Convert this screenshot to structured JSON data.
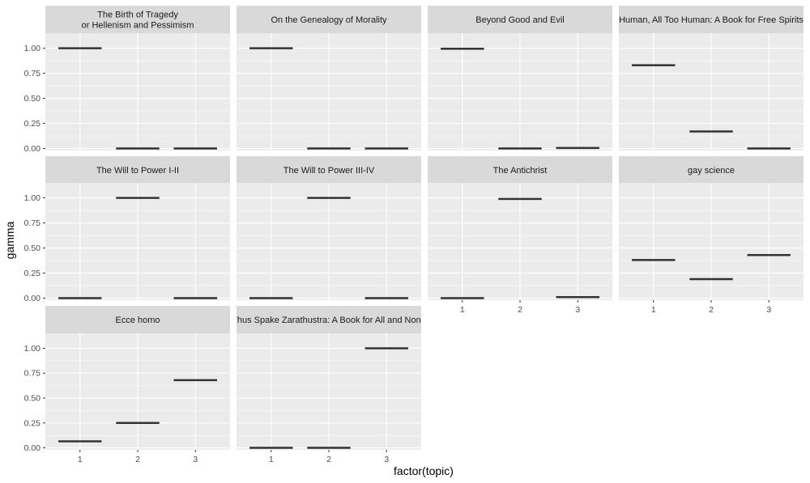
{
  "chart_data": {
    "type": "boxplot",
    "xlabel": "factor(topic)",
    "ylabel": "gamma",
    "x_categories": [
      "1",
      "2",
      "3"
    ],
    "y_ticks": [
      "0.00",
      "0.25",
      "0.50",
      "0.75",
      "1.00"
    ],
    "ylim": [
      -0.02,
      1.15
    ],
    "grid": true,
    "panel_background": "#ebebeb",
    "strip_background": "#d9d9d9",
    "line_color": "#333333",
    "facets": [
      {
        "title": [
          "The Birth of Tragedy",
          "or Hellenism and Pessimism"
        ],
        "values": [
          1.0,
          0.0,
          0.0
        ]
      },
      {
        "title": [
          "On the Genealogy of Morality"
        ],
        "values": [
          1.0,
          0.0,
          0.0
        ]
      },
      {
        "title": [
          "Beyond Good and Evil"
        ],
        "values": [
          0.995,
          0.0,
          0.005
        ]
      },
      {
        "title": [
          "Human, All Too Human: A Book for Free Spirits"
        ],
        "values": [
          0.83,
          0.17,
          0.0
        ]
      },
      {
        "title": [
          "The Will to Power I-II"
        ],
        "values": [
          0.0,
          1.0,
          0.0
        ]
      },
      {
        "title": [
          "The Will to Power III-IV"
        ],
        "values": [
          0.0,
          1.0,
          0.0
        ]
      },
      {
        "title": [
          "The Antichrist"
        ],
        "values": [
          0.0,
          0.99,
          0.01
        ]
      },
      {
        "title": [
          "gay science"
        ],
        "values": [
          0.38,
          0.19,
          0.43
        ]
      },
      {
        "title": [
          "Ecce homo"
        ],
        "values": [
          0.065,
          0.25,
          0.68
        ]
      },
      {
        "title": [
          "Thus Spake Zarathustra: A Book for All and None"
        ],
        "values": [
          0.0,
          0.0,
          1.0
        ]
      }
    ]
  }
}
